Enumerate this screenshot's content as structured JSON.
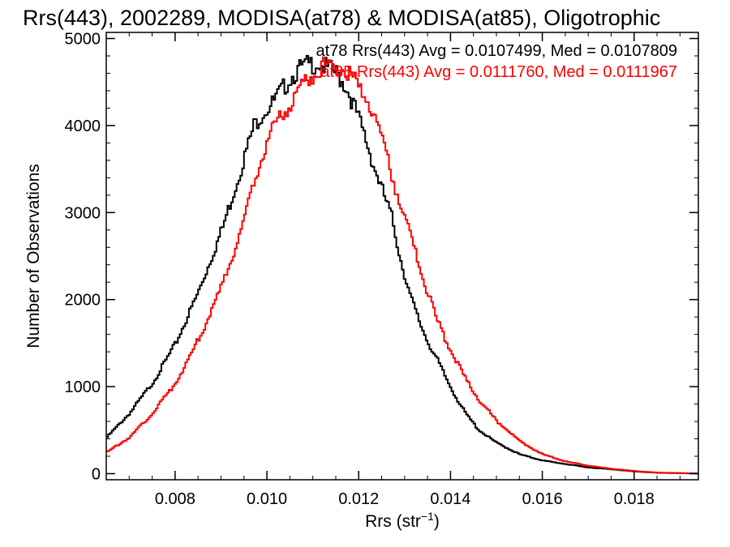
{
  "chart_data": {
    "type": "line",
    "title": "Rrs(443), 2002289, MODISA(at78) & MODISA(at85), Oligotrophic",
    "xlabel": "Rrs (str",
    "xlabel_sup": "−1",
    "xlabel_close": ")",
    "ylabel": "Number of Observations",
    "xlim": [
      0.0065,
      0.0194
    ],
    "ylim": [
      -70,
      5070
    ],
    "x_ticks": [
      0.008,
      0.01,
      0.012,
      0.014,
      0.016,
      0.018
    ],
    "x_tick_labels": [
      "0.008",
      "0.010",
      "0.012",
      "0.014",
      "0.016",
      "0.018"
    ],
    "y_ticks": [
      0,
      1000,
      2000,
      3000,
      4000,
      5000
    ],
    "y_tick_labels": [
      "0",
      "1000",
      "2000",
      "3000",
      "4000",
      "5000"
    ],
    "grid": false,
    "legend_position": "top-right",
    "series": [
      {
        "name": "at78",
        "color": "#000000",
        "legend_text": "at78 Rrs(443) Avg = 0.0107499, Med = 0.0107809",
        "x": [
          0.0065,
          0.007,
          0.0075,
          0.008,
          0.0085,
          0.009,
          0.0093,
          0.0095,
          0.0097,
          0.0099,
          0.0101,
          0.0103,
          0.0105,
          0.0107,
          0.0109,
          0.0111,
          0.0113,
          0.0115,
          0.0117,
          0.0119,
          0.0121,
          0.0123,
          0.0125,
          0.0127,
          0.0129,
          0.0131,
          0.0133,
          0.0135,
          0.0137,
          0.0139,
          0.0141,
          0.0143,
          0.0146,
          0.015,
          0.0155,
          0.016,
          0.0165,
          0.017,
          0.0175,
          0.018,
          0.0185,
          0.019,
          0.0194
        ],
        "y": [
          420,
          700,
          1050,
          1500,
          2100,
          2800,
          3300,
          3650,
          4000,
          4150,
          4250,
          4400,
          4550,
          4650,
          4700,
          4720,
          4650,
          4600,
          4450,
          4200,
          3900,
          3550,
          3250,
          2950,
          2450,
          2050,
          1750,
          1500,
          1300,
          1080,
          880,
          700,
          500,
          350,
          220,
          150,
          110,
          70,
          50,
          25,
          10,
          5,
          2
        ]
      },
      {
        "name": "at85",
        "color": "#ff0000",
        "legend_text": "at85 Rrs(443) Avg = 0.0111760, Med = 0.0111967",
        "x": [
          0.0065,
          0.007,
          0.0075,
          0.008,
          0.0085,
          0.009,
          0.0093,
          0.0095,
          0.0097,
          0.0099,
          0.0101,
          0.0103,
          0.0105,
          0.0107,
          0.0109,
          0.0111,
          0.0113,
          0.0115,
          0.0117,
          0.0119,
          0.0121,
          0.0123,
          0.0125,
          0.0127,
          0.0129,
          0.0131,
          0.0133,
          0.0135,
          0.0137,
          0.0139,
          0.0141,
          0.0143,
          0.0146,
          0.015,
          0.0155,
          0.016,
          0.0165,
          0.017,
          0.0175,
          0.018,
          0.0185,
          0.019,
          0.0194
        ],
        "y": [
          250,
          420,
          700,
          1050,
          1550,
          2150,
          2600,
          2950,
          3350,
          3700,
          3950,
          4100,
          4250,
          4400,
          4550,
          4650,
          4700,
          4680,
          4620,
          4500,
          4350,
          4150,
          3850,
          3450,
          3050,
          2750,
          2400,
          2050,
          1750,
          1500,
          1300,
          1100,
          850,
          600,
          370,
          220,
          140,
          90,
          55,
          30,
          12,
          6,
          2
        ]
      }
    ]
  }
}
